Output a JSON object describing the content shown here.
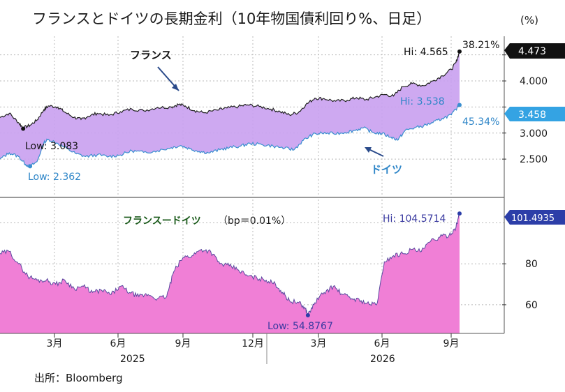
{
  "title": "フランスとドイツの長期金利（10年物国債利回り%、日足）",
  "unit": "(%)",
  "source": "出所：Bloomberg",
  "colors": {
    "france_line": "#222222",
    "germany_line": "#3a8fd0",
    "band_fill": "#c9a0f0",
    "spread_fill": "#f07fd6",
    "spread_line": "#5a4aa0",
    "germany_label": "#2f86c8",
    "spread_label": "#3a3aa0",
    "title_text": "#1a1a1a",
    "badge_dark": "#111111",
    "badge_blue": "#34a3e3",
    "badge_navy": "#2c3ea8"
  },
  "chart_data": [
    {
      "type": "area",
      "panel": "top",
      "y_axis": {
        "ticks": [
          "2.500",
          "3.000",
          "4.000"
        ],
        "ylim": [
          2.1,
          4.75
        ]
      },
      "x_axis": {
        "months": [
          "3月",
          "6月",
          "9月",
          "12月",
          "3月",
          "6月",
          "9月"
        ],
        "years": [
          "2025",
          "2026"
        ],
        "xlim": [
          0,
          20.3
        ]
      },
      "series": [
        {
          "name": "フランス",
          "points": [
            [
              0,
              3.3
            ],
            [
              0.4,
              3.38
            ],
            [
              0.8,
              3.2
            ],
            [
              1,
              3.1
            ],
            [
              1.3,
              3.15
            ],
            [
              1.6,
              3.25
            ],
            [
              1.9,
              3.45
            ],
            [
              2.1,
              3.52
            ],
            [
              2.5,
              3.5
            ],
            [
              2.8,
              3.4
            ],
            [
              3.2,
              3.3
            ],
            [
              3.5,
              3.26
            ],
            [
              3.8,
              3.32
            ],
            [
              4.2,
              3.38
            ],
            [
              4.7,
              3.34
            ],
            [
              5.2,
              3.41
            ],
            [
              5.7,
              3.46
            ],
            [
              6.2,
              3.43
            ],
            [
              6.8,
              3.49
            ],
            [
              7.4,
              3.5
            ],
            [
              7.7,
              3.55
            ],
            [
              8.0,
              3.52
            ],
            [
              8.4,
              3.43
            ],
            [
              8.8,
              3.39
            ],
            [
              9.4,
              3.44
            ],
            [
              9.8,
              3.48
            ],
            [
              10.3,
              3.51
            ],
            [
              10.7,
              3.54
            ],
            [
              11.2,
              3.51
            ],
            [
              11.7,
              3.46
            ],
            [
              12.1,
              3.41
            ],
            [
              12.5,
              3.35
            ],
            [
              12.9,
              3.4
            ],
            [
              13.2,
              3.54
            ],
            [
              13.6,
              3.67
            ],
            [
              14.0,
              3.66
            ],
            [
              14.5,
              3.61
            ],
            [
              15.0,
              3.63
            ],
            [
              15.4,
              3.68
            ],
            [
              15.8,
              3.64
            ],
            [
              16.2,
              3.69
            ],
            [
              16.6,
              3.74
            ],
            [
              17.0,
              3.71
            ],
            [
              17.4,
              3.89
            ],
            [
              17.8,
              3.95
            ],
            [
              18.3,
              3.91
            ],
            [
              18.7,
              4.0
            ],
            [
              19.1,
              4.1
            ],
            [
              19.5,
              4.22
            ],
            [
              19.7,
              4.36
            ],
            [
              19.85,
              4.565
            ]
          ],
          "annotations": {
            "high": "Hi: 4.565",
            "low": "Low: 3.083",
            "high_point": [
              19.85,
              4.565
            ],
            "low_point": [
              1.0,
              3.083
            ],
            "pct_change": "38.21%",
            "last": "4.473"
          }
        },
        {
          "name": "ドイツ",
          "points": [
            [
              0,
              2.5
            ],
            [
              0.4,
              2.62
            ],
            [
              0.8,
              2.55
            ],
            [
              1.1,
              2.4
            ],
            [
              1.3,
              2.36
            ],
            [
              1.6,
              2.45
            ],
            [
              1.9,
              2.82
            ],
            [
              2.1,
              2.88
            ],
            [
              2.5,
              2.8
            ],
            [
              2.9,
              2.7
            ],
            [
              3.3,
              2.6
            ],
            [
              3.7,
              2.55
            ],
            [
              4.2,
              2.58
            ],
            [
              4.7,
              2.55
            ],
            [
              5.2,
              2.58
            ],
            [
              5.7,
              2.66
            ],
            [
              6.2,
              2.63
            ],
            [
              6.8,
              2.66
            ],
            [
              7.4,
              2.72
            ],
            [
              7.8,
              2.76
            ],
            [
              8.2,
              2.7
            ],
            [
              8.6,
              2.65
            ],
            [
              9.0,
              2.62
            ],
            [
              9.5,
              2.68
            ],
            [
              9.9,
              2.72
            ],
            [
              10.4,
              2.75
            ],
            [
              10.8,
              2.8
            ],
            [
              11.3,
              2.78
            ],
            [
              11.8,
              2.75
            ],
            [
              12.3,
              2.71
            ],
            [
              12.7,
              2.68
            ],
            [
              13.1,
              2.86
            ],
            [
              13.5,
              2.97
            ],
            [
              13.9,
              3.0
            ],
            [
              14.4,
              2.99
            ],
            [
              14.9,
              3.01
            ],
            [
              15.3,
              3.05
            ],
            [
              15.7,
              3.1
            ],
            [
              16.1,
              3.01
            ],
            [
              16.5,
              2.99
            ],
            [
              16.9,
              2.92
            ],
            [
              17.2,
              2.87
            ],
            [
              17.5,
              3.05
            ],
            [
              17.9,
              3.1
            ],
            [
              18.3,
              3.14
            ],
            [
              18.7,
              3.2
            ],
            [
              19.1,
              3.28
            ],
            [
              19.5,
              3.35
            ],
            [
              19.85,
              3.538
            ]
          ],
          "annotations": {
            "high": "Hi: 3.538",
            "low": "Low: 2.362",
            "high_point": [
              19.85,
              3.538
            ],
            "low_point": [
              1.3,
              2.362
            ],
            "pct_change": "45.34%",
            "last": "3.458"
          }
        }
      ]
    },
    {
      "type": "area",
      "panel": "bottom",
      "title": "フランスードイツ",
      "subtitle": "（bp＝0.01%）",
      "y_axis": {
        "ticks": [
          "60",
          "80"
        ],
        "ylim": [
          46,
          108
        ]
      },
      "x_axis": {
        "xlim": [
          0,
          20.3
        ]
      },
      "series": [
        {
          "name": "フランスードイツ",
          "points": [
            [
              0,
              85
            ],
            [
              0.4,
              86
            ],
            [
              0.8,
              80
            ],
            [
              1.2,
              74
            ],
            [
              1.6,
              72
            ],
            [
              2.0,
              72
            ],
            [
              2.4,
              70
            ],
            [
              2.8,
              72
            ],
            [
              3.2,
              68
            ],
            [
              3.6,
              69
            ],
            [
              4.0,
              66
            ],
            [
              4.4,
              67
            ],
            [
              4.8,
              65
            ],
            [
              5.2,
              69
            ],
            [
              5.6,
              66
            ],
            [
              6.0,
              64
            ],
            [
              6.4,
              65
            ],
            [
              6.8,
              63
            ],
            [
              7.2,
              64
            ],
            [
              7.5,
              76
            ],
            [
              7.9,
              83
            ],
            [
              8.3,
              84
            ],
            [
              8.7,
              87
            ],
            [
              9.1,
              86
            ],
            [
              9.5,
              80
            ],
            [
              9.9,
              79
            ],
            [
              10.3,
              77
            ],
            [
              10.7,
              74
            ],
            [
              11.1,
              73
            ],
            [
              11.5,
              72
            ],
            [
              11.9,
              70
            ],
            [
              12.2,
              66
            ],
            [
              12.5,
              62
            ],
            [
              12.9,
              61
            ],
            [
              13.2,
              58
            ],
            [
              13.3,
              54.8767
            ],
            [
              13.6,
              61
            ],
            [
              14.0,
              66
            ],
            [
              14.4,
              69
            ],
            [
              14.8,
              65
            ],
            [
              15.2,
              63
            ],
            [
              15.6,
              62
            ],
            [
              16.0,
              60
            ],
            [
              16.3,
              61
            ],
            [
              16.6,
              81
            ],
            [
              17.0,
              84
            ],
            [
              17.4,
              85
            ],
            [
              17.8,
              87
            ],
            [
              18.2,
              86
            ],
            [
              18.6,
              91
            ],
            [
              19.0,
              93
            ],
            [
              19.4,
              94
            ],
            [
              19.7,
              98
            ],
            [
              19.85,
              104.5714
            ]
          ],
          "annotations": {
            "high": "Hi: 104.5714",
            "low": "Low: 54.8767",
            "high_point": [
              19.85,
              104.5714
            ],
            "low_point": [
              13.3,
              54.8767
            ],
            "last": "101.4935"
          }
        }
      ]
    }
  ]
}
